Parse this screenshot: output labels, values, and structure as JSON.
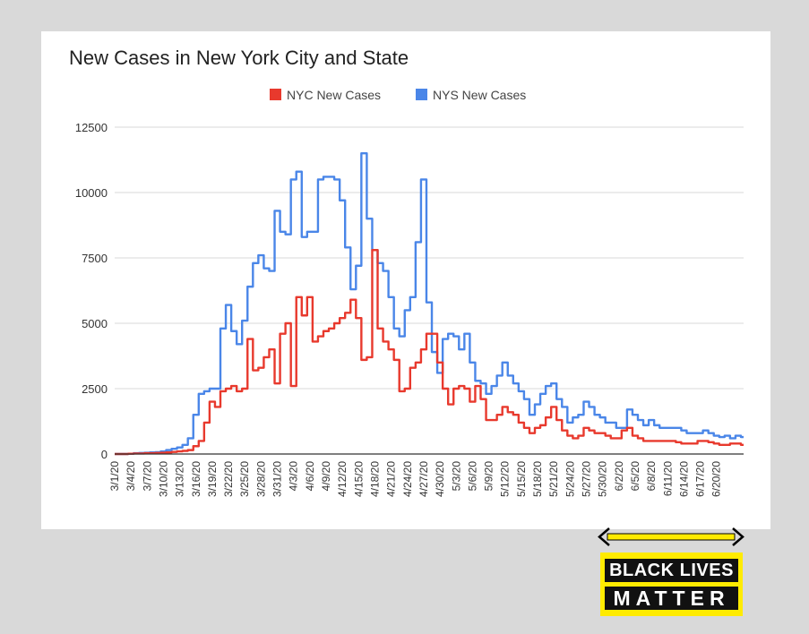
{
  "chart_data": {
    "type": "line",
    "title": "New Cases in New York City and State",
    "xlabel": "",
    "ylabel": "",
    "ylim": [
      0,
      12500
    ],
    "yticks": [
      "0",
      "2500",
      "5000",
      "7500",
      "10000",
      "12500"
    ],
    "grid": true,
    "legend": "top-center",
    "x_start": "3/1/20",
    "x_end": "6/22/20",
    "xtick_labels": [
      "3/1/20",
      "3/4/20",
      "3/7/20",
      "3/10/20",
      "3/13/20",
      "3/16/20",
      "3/19/20",
      "3/22/20",
      "3/25/20",
      "3/28/20",
      "3/31/20",
      "4/3/20",
      "4/6/20",
      "4/9/20",
      "4/12/20",
      "4/15/20",
      "4/18/20",
      "4/21/20",
      "4/24/20",
      "4/27/20",
      "4/30/20",
      "5/3/20",
      "5/6/20",
      "5/9/20",
      "5/12/20",
      "5/15/20",
      "5/18/20",
      "5/21/20",
      "5/24/20",
      "5/27/20",
      "5/30/20",
      "6/2/20",
      "6/5/20",
      "6/8/20",
      "6/11/20",
      "6/14/20",
      "6/17/20",
      "6/20/20"
    ],
    "series": [
      {
        "name": "NYC New Cases",
        "color": "#e8392d",
        "values": [
          0,
          0,
          0,
          10,
          20,
          20,
          30,
          30,
          40,
          50,
          60,
          80,
          100,
          120,
          150,
          300,
          500,
          1200,
          2000,
          1800,
          2400,
          2500,
          2600,
          2400,
          2500,
          4400,
          3200,
          3300,
          3700,
          4000,
          2700,
          4600,
          5000,
          2600,
          6000,
          5300,
          6000,
          4300,
          4500,
          4700,
          4800,
          5000,
          5200,
          5400,
          5900,
          5200,
          3600,
          3700,
          7800,
          4800,
          4300,
          4000,
          3600,
          2400,
          2500,
          3300,
          3500,
          4000,
          4600,
          4600,
          3500,
          2500,
          1900,
          2500,
          2600,
          2500,
          2000,
          2600,
          2100,
          1300,
          1300,
          1500,
          1800,
          1600,
          1500,
          1200,
          1000,
          800,
          1000,
          1100,
          1400,
          1800,
          1300,
          900,
          700,
          600,
          700,
          1000,
          900,
          800,
          800,
          700,
          600,
          600,
          900,
          1000,
          700,
          600,
          500,
          500,
          500,
          500,
          500,
          500,
          450,
          400,
          400,
          400,
          500,
          500,
          450,
          400,
          350,
          350,
          400,
          400,
          350
        ]
      },
      {
        "name": "NYS New Cases",
        "color": "#4a86e8",
        "values": [
          0,
          0,
          0,
          10,
          30,
          40,
          50,
          60,
          70,
          100,
          150,
          200,
          250,
          350,
          600,
          1500,
          2300,
          2400,
          2500,
          2500,
          4800,
          5700,
          4700,
          4200,
          5100,
          6400,
          7300,
          7600,
          7100,
          7000,
          9300,
          8500,
          8400,
          10500,
          10800,
          8300,
          8500,
          8500,
          10500,
          10600,
          10600,
          10500,
          9700,
          7900,
          6300,
          7200,
          11500,
          9000,
          7800,
          7300,
          7000,
          6000,
          4800,
          4500,
          5500,
          6000,
          8100,
          10500,
          5800,
          3900,
          3100,
          4400,
          4600,
          4500,
          4000,
          4600,
          3500,
          2800,
          2700,
          2300,
          2600,
          3000,
          3500,
          3000,
          2700,
          2400,
          2100,
          1500,
          1900,
          2300,
          2600,
          2700,
          2100,
          1800,
          1200,
          1400,
          1500,
          2000,
          1800,
          1500,
          1400,
          1200,
          1200,
          1000,
          1000,
          1700,
          1500,
          1300,
          1100,
          1300,
          1100,
          1000,
          1000,
          1000,
          1000,
          900,
          800,
          800,
          800,
          900,
          800,
          700,
          650,
          700,
          600,
          700,
          650
        ]
      }
    ]
  },
  "badge": {
    "line1": "BLACK LIVES",
    "line2": "MATTER"
  },
  "colors": {
    "grid": "#d9d9d9",
    "axis": "#333333",
    "badge_yellow": "#ffeb00",
    "background": "#d9d9d9"
  }
}
